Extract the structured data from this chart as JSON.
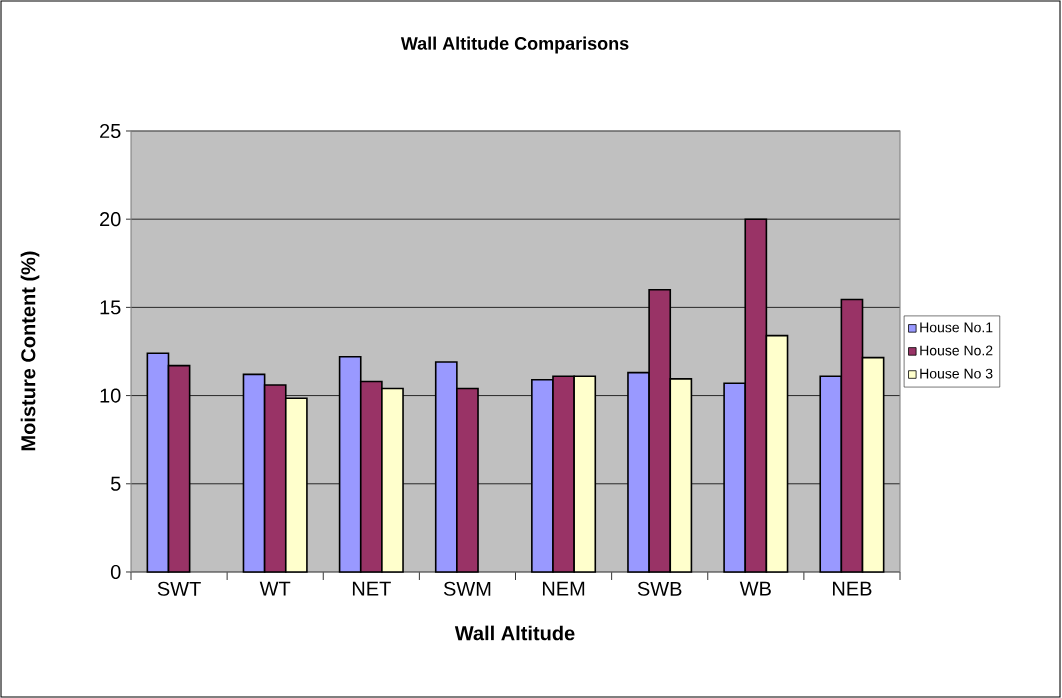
{
  "chart_data": {
    "type": "bar",
    "title": "Wall Altitude Comparisons",
    "xlabel": "Wall Altitude",
    "ylabel": "Moisture Content (%)",
    "categories": [
      "SWT",
      "WT",
      "NET",
      "SWM",
      "NEM",
      "SWB",
      "WB",
      "NEB"
    ],
    "series": [
      {
        "name": "House No.1",
        "color": "#9999ff",
        "values": [
          12.4,
          11.2,
          12.2,
          11.9,
          10.9,
          11.3,
          10.7,
          11.1
        ]
      },
      {
        "name": "House No.2",
        "color": "#993366",
        "values": [
          11.7,
          10.6,
          10.8,
          10.4,
          11.1,
          16.0,
          20.0,
          15.45
        ]
      },
      {
        "name": "House No 3",
        "color": "#ffffcc",
        "values": [
          null,
          9.85,
          10.4,
          null,
          11.1,
          10.95,
          13.4,
          12.15
        ]
      }
    ],
    "ylim": [
      0,
      25
    ],
    "yticks": [
      0,
      5,
      10,
      15,
      20,
      25
    ],
    "grid": "y",
    "legend": "right"
  }
}
